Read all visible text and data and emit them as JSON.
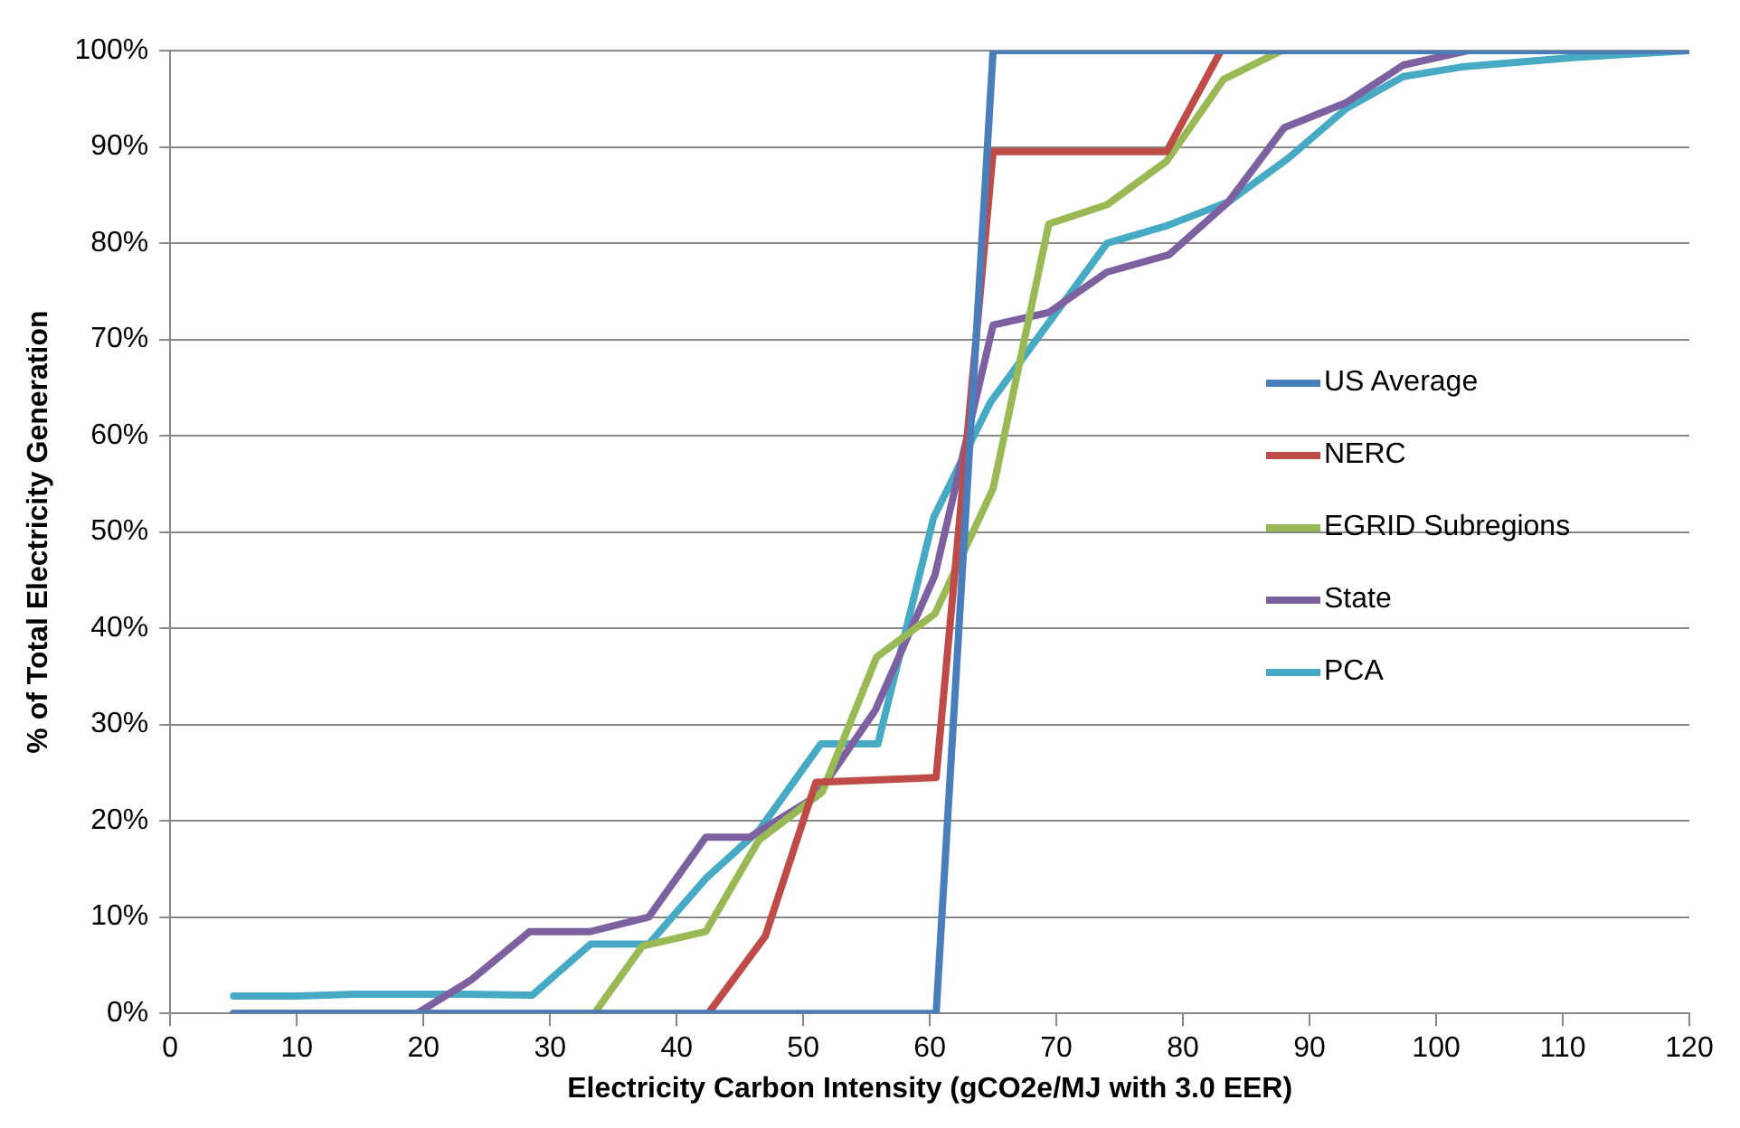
{
  "chart_data": {
    "type": "line",
    "xlabel": "Electricity Carbon Intensity (gCO2e/MJ with 3.0 EER)",
    "ylabel": "% of Total Electricity Generation",
    "xlim": [
      0,
      120
    ],
    "xticks": [
      0,
      10,
      20,
      30,
      40,
      50,
      60,
      70,
      80,
      90,
      100,
      110,
      120
    ],
    "ylim": [
      0,
      100
    ],
    "yticks": [
      {
        "value": 0,
        "label": "0%"
      },
      {
        "value": 10,
        "label": "10%"
      },
      {
        "value": 20,
        "label": "20%"
      },
      {
        "value": 30,
        "label": "30%"
      },
      {
        "value": 40,
        "label": "40%"
      },
      {
        "value": 50,
        "label": "50%"
      },
      {
        "value": 60,
        "label": "60%"
      },
      {
        "value": 70,
        "label": "70%"
      },
      {
        "value": 80,
        "label": "80%"
      },
      {
        "value": 90,
        "label": "90%"
      },
      {
        "value": 100,
        "label": "100%"
      }
    ],
    "grid": "y",
    "legend": "right",
    "marker": "none",
    "line_style": "solid",
    "series": [
      {
        "name": "US Average",
        "color": "#4a7ebb",
        "x": [
          5,
          60.5,
          65,
          120
        ],
        "values": [
          0,
          0,
          100,
          100
        ]
      },
      {
        "name": "NERC",
        "color": "#be4b48",
        "x": [
          5,
          42.5,
          47,
          51,
          60.5,
          65,
          78.7,
          83,
          120
        ],
        "values": [
          0,
          0,
          8,
          24,
          24.5,
          89.5,
          89.5,
          100,
          100
        ]
      },
      {
        "name": "EGRID Subregions",
        "color": "#98b954",
        "x": [
          5,
          33.5,
          37.3,
          42.3,
          46.5,
          51.5,
          55.8,
          60.4,
          65,
          69.4,
          74,
          78.7,
          83.2,
          87.8,
          120
        ],
        "values": [
          0,
          0,
          7,
          8.5,
          18,
          23,
          37,
          41.5,
          54.5,
          82,
          84,
          88.5,
          97,
          100,
          100
        ]
      },
      {
        "name": "State",
        "color": "#7d60a0",
        "x": [
          5,
          19.5,
          23.8,
          28.4,
          33.2,
          37.8,
          42.3,
          45.8,
          51,
          55.7,
          60.4,
          65,
          69.4,
          74,
          78.9,
          83.6,
          88,
          92.9,
          97.4,
          102.5,
          120
        ],
        "values": [
          0,
          0,
          3.5,
          8.5,
          8.5,
          10,
          18.3,
          18.3,
          22.5,
          31.5,
          45.5,
          71.5,
          72.8,
          77,
          78.8,
          84.3,
          92,
          94.6,
          98.5,
          100,
          100
        ]
      },
      {
        "name": "PCA",
        "color": "#46aac5",
        "x": [
          5,
          10,
          14.5,
          19,
          23.5,
          28.6,
          33.2,
          37.8,
          42.3,
          46.5,
          51.4,
          55.9,
          60.3,
          64.8,
          74,
          78.7,
          83.6,
          88.3,
          92.9,
          97.4,
          102,
          111,
          120
        ],
        "values": [
          1.8,
          1.8,
          2,
          2,
          2,
          1.9,
          7.2,
          7.2,
          14,
          19,
          28,
          28,
          51.5,
          63.5,
          80,
          81.8,
          84.3,
          88.8,
          94,
          97.3,
          98.3,
          99.3,
          100
        ]
      }
    ]
  }
}
